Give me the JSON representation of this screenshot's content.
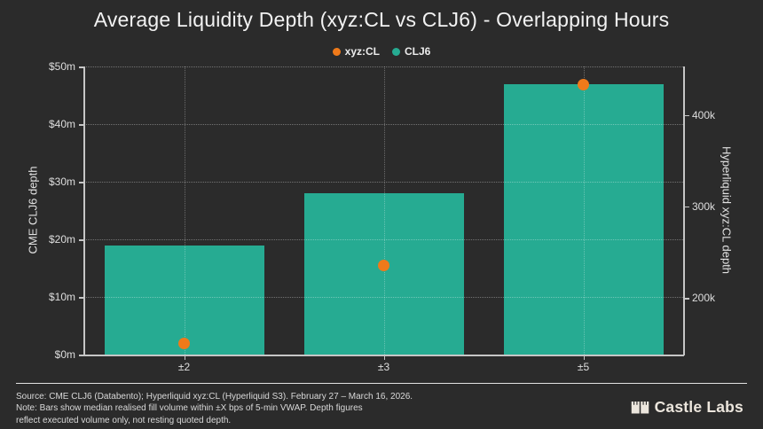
{
  "title": "Average Liquidity Depth (xyz:CL vs CLJ6) - Overlapping Hours",
  "colors": {
    "background": "#2b2b2b",
    "bar_teal": "#26ab92",
    "scatter_orange": "#ef7a1a",
    "text_light": "#ececec"
  },
  "legend": {
    "items": [
      {
        "label": "xyz:CL",
        "color": "#ef7a1a"
      },
      {
        "label": "CLJ6",
        "color": "#26ab92"
      }
    ]
  },
  "chart_data": {
    "type": "bar",
    "title": "Average Liquidity Depth (xyz:CL vs CLJ6) - Overlapping Hours",
    "categories": [
      "±2",
      "±3",
      "±5"
    ],
    "series": [
      {
        "name": "CLJ6",
        "render": "bar",
        "axis": "left",
        "color": "#26ab92",
        "values": [
          19,
          28,
          47
        ],
        "unit": "$m (CME CLJ6 depth)"
      },
      {
        "name": "xyz:CL",
        "render": "scatter",
        "axis": "right",
        "color": "#ef7a1a",
        "values": [
          150,
          235,
          433
        ],
        "unit": "k (Hyperliquid xyz:CL depth)"
      }
    ],
    "left_axis": {
      "label": "CME CLJ6 depth",
      "range": [
        0,
        50
      ],
      "tick_values": [
        0,
        10,
        20,
        30,
        40,
        50
      ],
      "tick_labels": [
        "$0m",
        "$10m",
        "$20m",
        "$30m",
        "$40m",
        "$50m"
      ]
    },
    "right_axis": {
      "label": "Hyperliquid xyz:CL depth",
      "range": [
        138,
        453
      ],
      "tick_values": [
        200,
        300,
        400
      ],
      "tick_labels": [
        "200k",
        "300k",
        "400k"
      ]
    },
    "xlabel": "",
    "grid": true,
    "legend_position": "top"
  },
  "footer": {
    "source_line": "Source: CME CLJ6 (Databento); Hyperliquid xyz:CL (Hyperliquid S3). February 27 – March 16, 2026.",
    "note_line1": "Note: Bars show median realised fill volume within ±X bps of 5-min VWAP. Depth figures",
    "note_line2": "reflect executed volume only, not resting quoted depth.",
    "brand": "Castle Labs"
  }
}
